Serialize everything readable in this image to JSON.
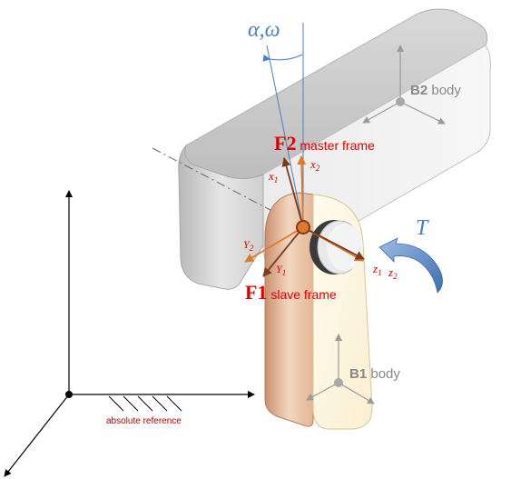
{
  "labels": {
    "angle": "α,ω",
    "torque": "T",
    "b2_bold": "B2",
    "b2_rest": " body",
    "b1_bold": "B1",
    "b1_rest": " body",
    "f2_bold": "F2",
    "f2_rest": " master frame",
    "f1_bold": "F1",
    "f1_rest": " slave frame",
    "x1_main": "x",
    "x1_sub": "1",
    "x2_main": "x",
    "x2_sub": "2",
    "y1_main": "Y",
    "y1_sub": "1",
    "y2_main": "Y",
    "y2_sub": "2",
    "z1_main": "z",
    "z1_sub": "1",
    "z2_main": "z",
    "z2_sub": "2",
    "absolute_reference": "absolute reference"
  },
  "colors": {
    "frame_red": "#e00000",
    "frame1_arrow": "#7a3b1e",
    "frame2_arrow": "#e07a2a",
    "angle_blue": "#4a7fc1",
    "torque_blue": "#4a7fc1",
    "body_label_gray": "#888888",
    "ground_red": "#b00000"
  }
}
